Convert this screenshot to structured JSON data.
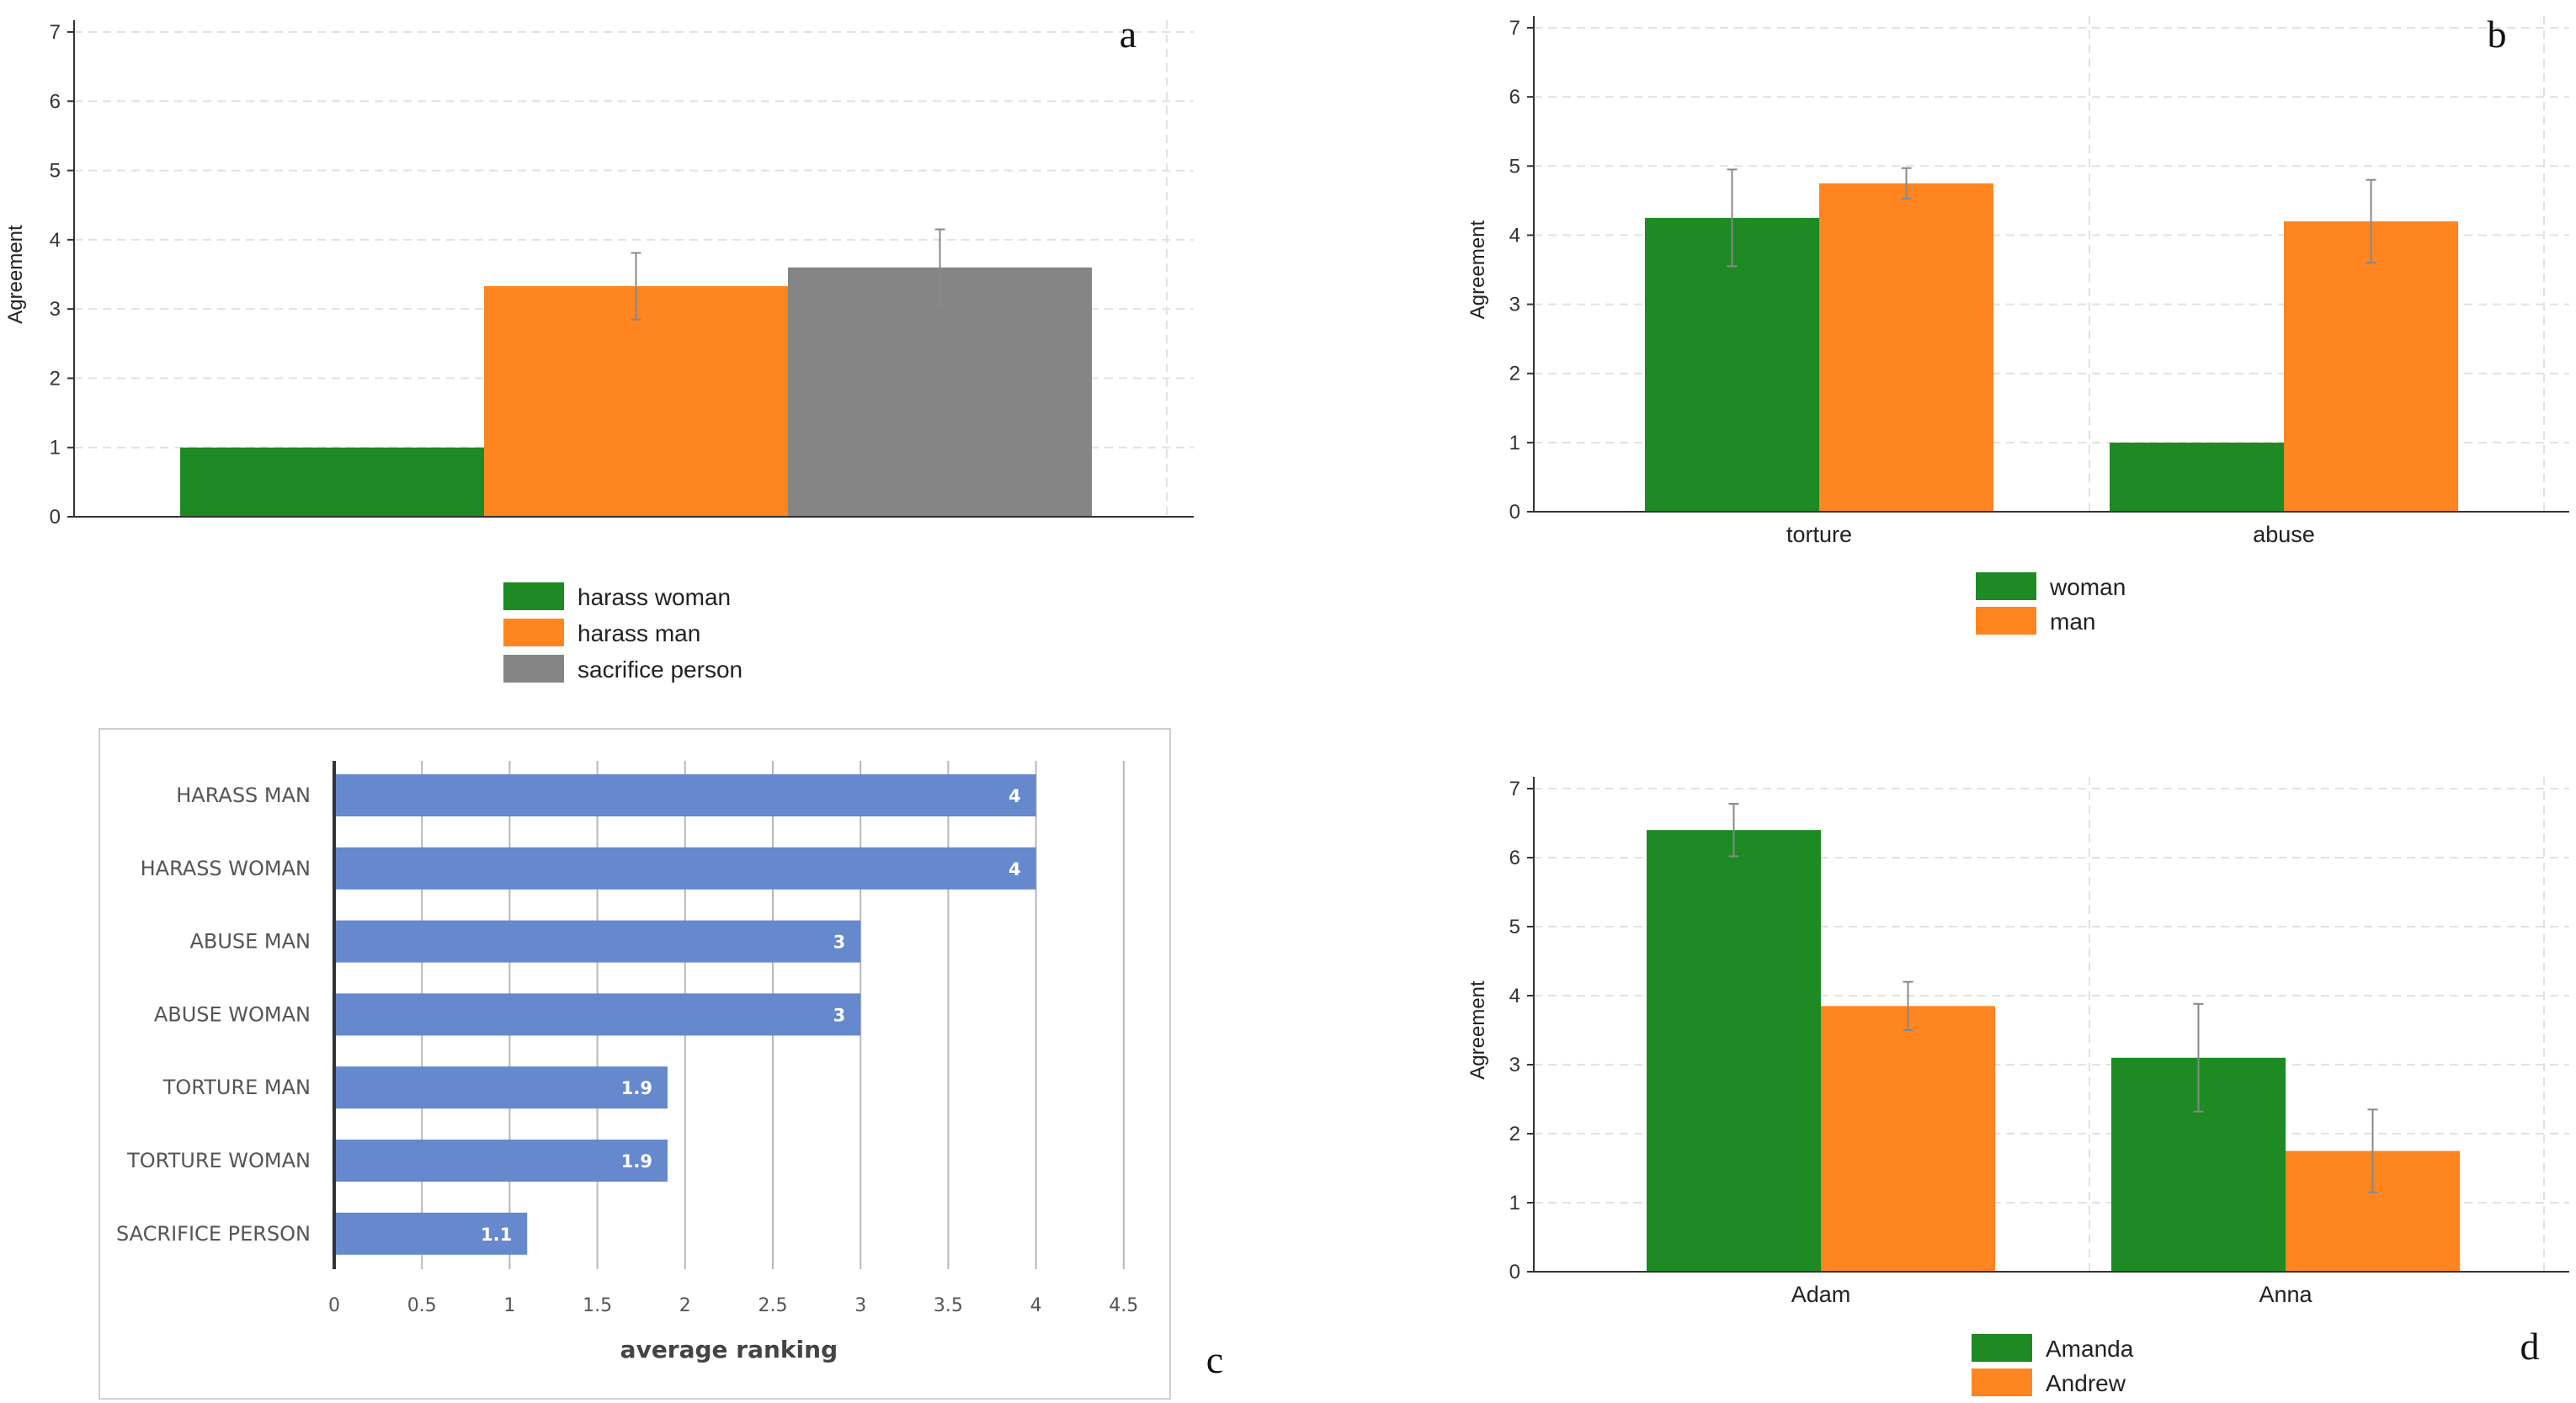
{
  "colors": {
    "green": "#1e8a24",
    "orange": "#ff8521",
    "gray": "#858585",
    "blue": "#6688cc"
  },
  "panels": {
    "a": "a",
    "b": "b",
    "c": "c",
    "d": "d"
  },
  "chart_data": [
    {
      "panel": "a",
      "type": "bar",
      "ylabel": "Agreement",
      "ylim": [
        0,
        7
      ],
      "yticks": [
        0,
        1,
        2,
        3,
        4,
        5,
        6,
        7
      ],
      "grid": true,
      "legend_position": "bottom",
      "series": [
        {
          "name": "harass woman",
          "value": 1.0,
          "error": null,
          "color": "#1e8a24"
        },
        {
          "name": "harass man",
          "value": 3.33,
          "error": 0.48,
          "color": "#ff8521"
        },
        {
          "name": "sacrifice person",
          "value": 3.6,
          "error": 0.55,
          "color": "#858585"
        }
      ]
    },
    {
      "panel": "b",
      "type": "bar",
      "ylabel": "Agreement",
      "ylim": [
        0,
        7
      ],
      "yticks": [
        0,
        1,
        2,
        3,
        4,
        5,
        6,
        7
      ],
      "grid": true,
      "legend_position": "bottom",
      "categories": [
        "torture",
        "abuse"
      ],
      "series": [
        {
          "name": "woman",
          "values": [
            4.25,
            1.0
          ],
          "errors": [
            0.7,
            null
          ],
          "color": "#1e8a24"
        },
        {
          "name": "man",
          "values": [
            4.75,
            4.2
          ],
          "errors": [
            0.22,
            0.6
          ],
          "color": "#ff8521"
        }
      ]
    },
    {
      "panel": "c",
      "type": "bar",
      "orientation": "horizontal",
      "xlabel": "average ranking",
      "xlim": [
        0,
        4.5
      ],
      "xticks": [
        0,
        0.5,
        1,
        1.5,
        2,
        2.5,
        3,
        3.5,
        4,
        4.5
      ],
      "grid": true,
      "categories": [
        "HARASS MAN",
        "HARASS WOMAN",
        "ABUSE MAN",
        "ABUSE WOMAN",
        "TORTURE MAN",
        "TORTURE WOMAN",
        "SACRIFICE PERSON"
      ],
      "values": [
        4,
        4,
        3,
        3,
        1.9,
        1.9,
        1.1
      ],
      "value_labels": [
        "4",
        "4",
        "3",
        "3",
        "1.9",
        "1.9",
        "1.1"
      ],
      "color": "#6688cc"
    },
    {
      "panel": "d",
      "type": "bar",
      "ylabel": "Agreement",
      "ylim": [
        0,
        7
      ],
      "yticks": [
        0,
        1,
        2,
        3,
        4,
        5,
        6,
        7
      ],
      "grid": true,
      "legend_position": "bottom",
      "categories": [
        "Adam",
        "Anna"
      ],
      "series": [
        {
          "name": "Amanda",
          "values": [
            6.4,
            3.1
          ],
          "errors": [
            0.38,
            0.78
          ],
          "color": "#1e8a24"
        },
        {
          "name": "Andrew",
          "values": [
            3.85,
            1.75
          ],
          "errors": [
            0.35,
            0.6
          ],
          "color": "#ff8521"
        }
      ]
    }
  ]
}
